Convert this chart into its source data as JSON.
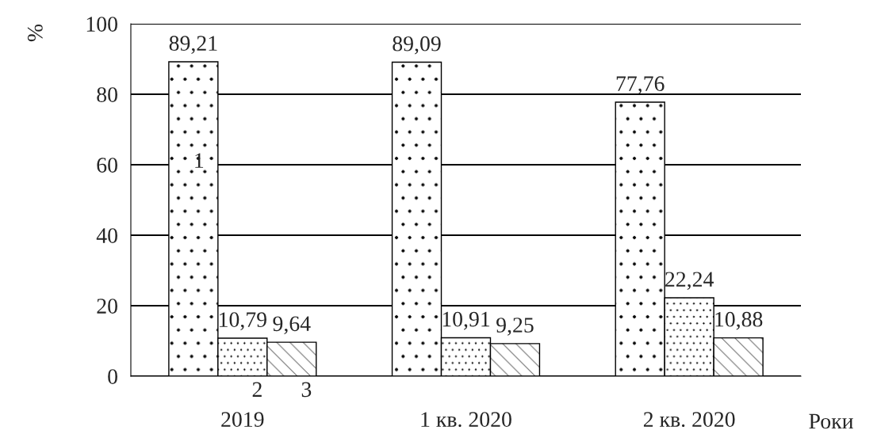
{
  "chart_data": {
    "type": "bar",
    "ylabel": "%",
    "xlabel": "Роки",
    "categories": [
      "2019",
      "1 кв. 2020",
      "2 кв. 2020"
    ],
    "series": [
      {
        "name": "1",
        "color": "#000000",
        "values": [
          89.21,
          89.09,
          77.76
        ],
        "value_labels": [
          "89,21",
          "89,09",
          "77,76"
        ]
      },
      {
        "name": "2",
        "color": "#000000",
        "values": [
          10.79,
          10.91,
          22.24
        ],
        "value_labels": [
          "10,79",
          "10,91",
          "22,24"
        ]
      },
      {
        "name": "3",
        "color": "#000000",
        "values": [
          9.64,
          9.25,
          10.88
        ],
        "value_labels": [
          "9,64",
          "9,25",
          "10,88"
        ]
      }
    ],
    "ylim": [
      0,
      100
    ],
    "yticks": [
      0,
      20,
      40,
      60,
      80,
      100
    ],
    "grid": "y",
    "legend": false
  }
}
